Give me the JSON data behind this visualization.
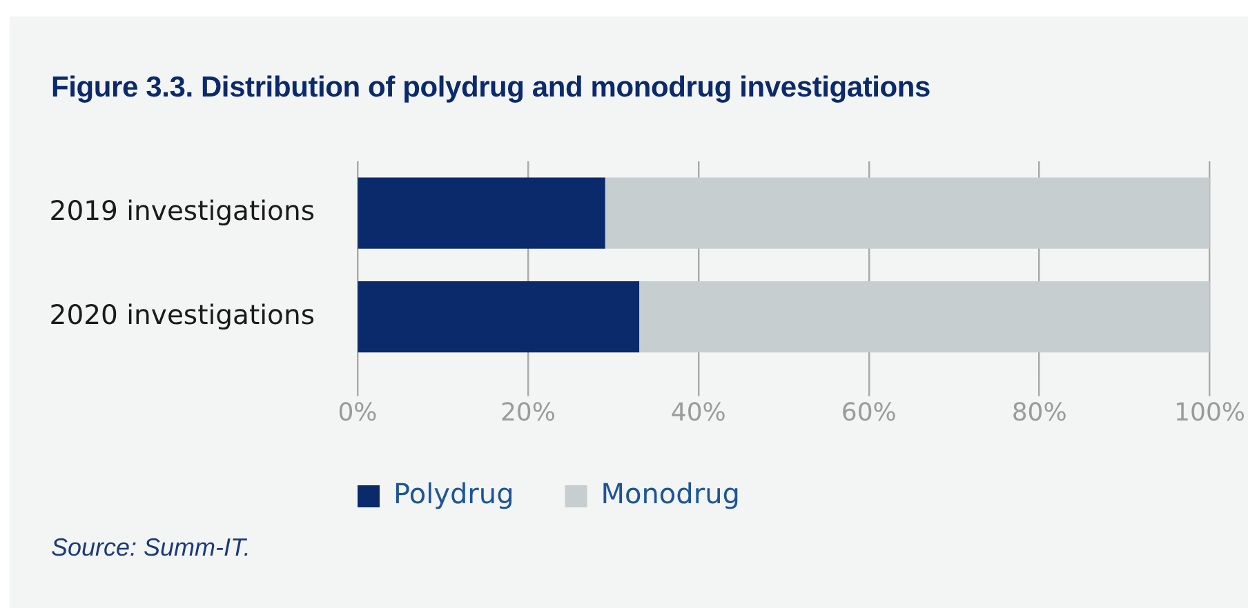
{
  "chart_data": {
    "type": "bar",
    "orientation": "horizontal",
    "stacked": true,
    "title": "Figure 3.3. Distribution of polydrug and monodrug investigations",
    "categories": [
      "2019 investigations",
      "2020 investigations"
    ],
    "series": [
      {
        "name": "Polydrug",
        "color": "#0a2a6b",
        "values": [
          29,
          33
        ]
      },
      {
        "name": "Monodrug",
        "color": "#c7cecf",
        "values": [
          71,
          67
        ]
      }
    ],
    "xlim": [
      0,
      100
    ],
    "xticks": [
      {
        "value": 0,
        "label": "0%"
      },
      {
        "value": 20,
        "label": "20%"
      },
      {
        "value": 40,
        "label": "40%"
      },
      {
        "value": 60,
        "label": "60%"
      },
      {
        "value": 80,
        "label": "80%"
      },
      {
        "value": 100,
        "label": "100%"
      }
    ],
    "grid": "x",
    "legend": "bottom",
    "annotations": [
      "Source: Summ-IT."
    ]
  }
}
